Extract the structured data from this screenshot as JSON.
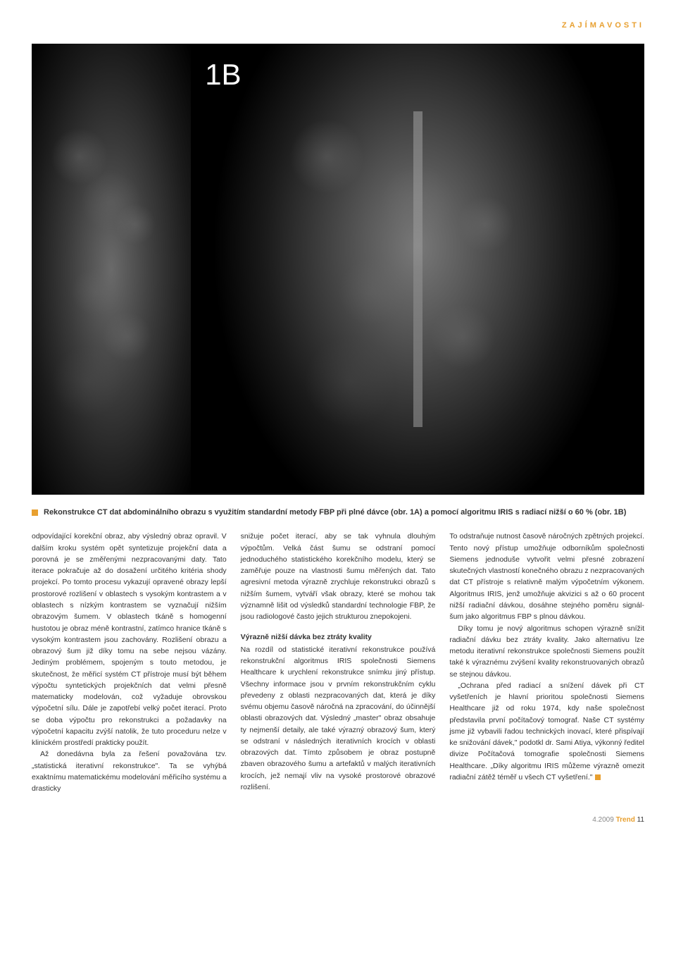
{
  "colors": {
    "accent": "#e8a030",
    "text": "#333333",
    "background": "#ffffff",
    "image_bg": "#000000",
    "footer_muted": "#888888"
  },
  "header": {
    "category": "ZAJÍMAVOSTI"
  },
  "figure": {
    "label": "1B",
    "label_color": "#ffffff",
    "label_fontsize": 42
  },
  "caption": {
    "text": "Rekonstrukce CT dat abdominálního obrazu s využitím standardní metody FBP při plné dávce (obr. 1A) a pomocí algoritmu IRIS s radiací nižší o 60 % (obr. 1B)"
  },
  "body": {
    "col1": "odpovídající korekční obraz, aby výsledný obraz opravil. V dalším kroku systém opět syntetizuje projekční data a porovná je se změřenými nezpracovanými daty. Tato iterace pokračuje až do dosažení určitého kritéria shody projekcí. Po tomto procesu vykazují opravené obrazy lepší prostorové rozlišení v oblastech s vysokým kontrastem a v oblastech s nízkým kontrastem se vyznačují nižším obrazovým šumem. V oblastech tkáně s homogenní hustotou je obraz méně kontrastní, zatímco hranice tkáně s vysokým kontrastem jsou zachovány. Rozlišení obrazu a obrazový šum již díky tomu na sebe nejsou vázány. Jediným problémem, spojeným s touto metodou, je skutečnost, že měřicí systém CT přístroje musí být během výpočtu syntetických projekčních dat velmi přesně matematicky modelován, což vyžaduje obrovskou výpočetní sílu. Dále je zapotřebí velký počet iterací. Proto se doba výpočtu pro rekonstrukci a požadavky na výpočetní kapacitu zvýší natolik, že tuto proceduru nelze v klinickém prostředí prakticky použít.",
    "col1_p2": "Až donedávna byla za řešení považována tzv. „statistická iterativní rekonstrukce\". Ta se vyhýbá exaktnímu matematickému modelování měřicího systému a drasticky",
    "col2_p1": "snižuje počet iterací, aby se tak vyhnula dlouhým výpočtům. Velká část šumu se odstraní pomocí jednoduchého statistického korekčního modelu, který se zaměřuje pouze na vlastnosti šumu měřených dat. Tato agresivní metoda výrazně zrychluje rekonstrukci obrazů s nižším šumem, vytváří však obrazy, které se mohou tak významně lišit od výsledků standardní technologie FBP, že jsou radiologové často jejich strukturou znepokojeni.",
    "col2_heading": "Výrazně nižší dávka bez ztráty kvality",
    "col2_p2": "Na rozdíl od statistické iterativní rekonstrukce používá rekonstrukční algoritmus IRIS společnosti Siemens Healthcare k urychlení rekonstrukce snímku jiný přístup. Všechny informace jsou v prvním rekonstrukčním cyklu převedeny z oblasti nezpracovaných dat, která je díky svému objemu časově náročná na zpracování, do účinnější oblasti obrazových dat. Výsledný „master\" obraz obsahuje ty nejmenší detaily, ale také výrazný obrazový šum, který se odstraní v následných iterativních krocích v oblasti obrazových dat. Tímto způsobem je obraz postupně zbaven obrazového šumu a artefaktů v malých iterativních krocích, jež nemají vliv na vysoké prostorové obrazové rozlišení.",
    "col3_p1": "To odstraňuje nutnost časově náročných zpětných projekcí. Tento nový přístup umožňuje odborníkům společnosti Siemens jednoduše vytvořit velmi přesné zobrazení skutečných vlastností konečného obrazu z nezpracovaných dat CT přístroje s relativně malým výpočetním výkonem. Algoritmus IRIS, jenž umožňuje akvizici s až o 60 procent nižší radiační dávkou, dosáhne stejného poměru signál-šum jako algoritmus FBP s plnou dávkou.",
    "col3_p2": "Díky tomu je nový algoritmus schopen výrazně snížit radiační dávku bez ztráty kvality. Jako alternativu lze metodu iterativní rekonstrukce společnosti Siemens použít také k výraznému zvýšení kvality rekonstruovaných obrazů se stejnou dávkou.",
    "col3_p3": "„Ochrana před radiací a snížení dávek při CT vyšetřeních je hlavní prioritou společnosti Siemens Healthcare již od roku 1974, kdy naše společnost představila první počítačový tomograf. Naše CT systémy jsme již vybavili řadou technických inovací, které přispívají ke snižování dávek,\" podotkl dr. Sami Atiya, výkonný ředitel divize Počítačová tomografie společnosti Siemens Healthcare. „Díky algoritmu IRIS můžeme výrazně omezit radiační zátěž téměř u všech CT vyšetření.\""
  },
  "footer": {
    "issue": "4.2009",
    "journal": "Trend",
    "page": "11"
  }
}
